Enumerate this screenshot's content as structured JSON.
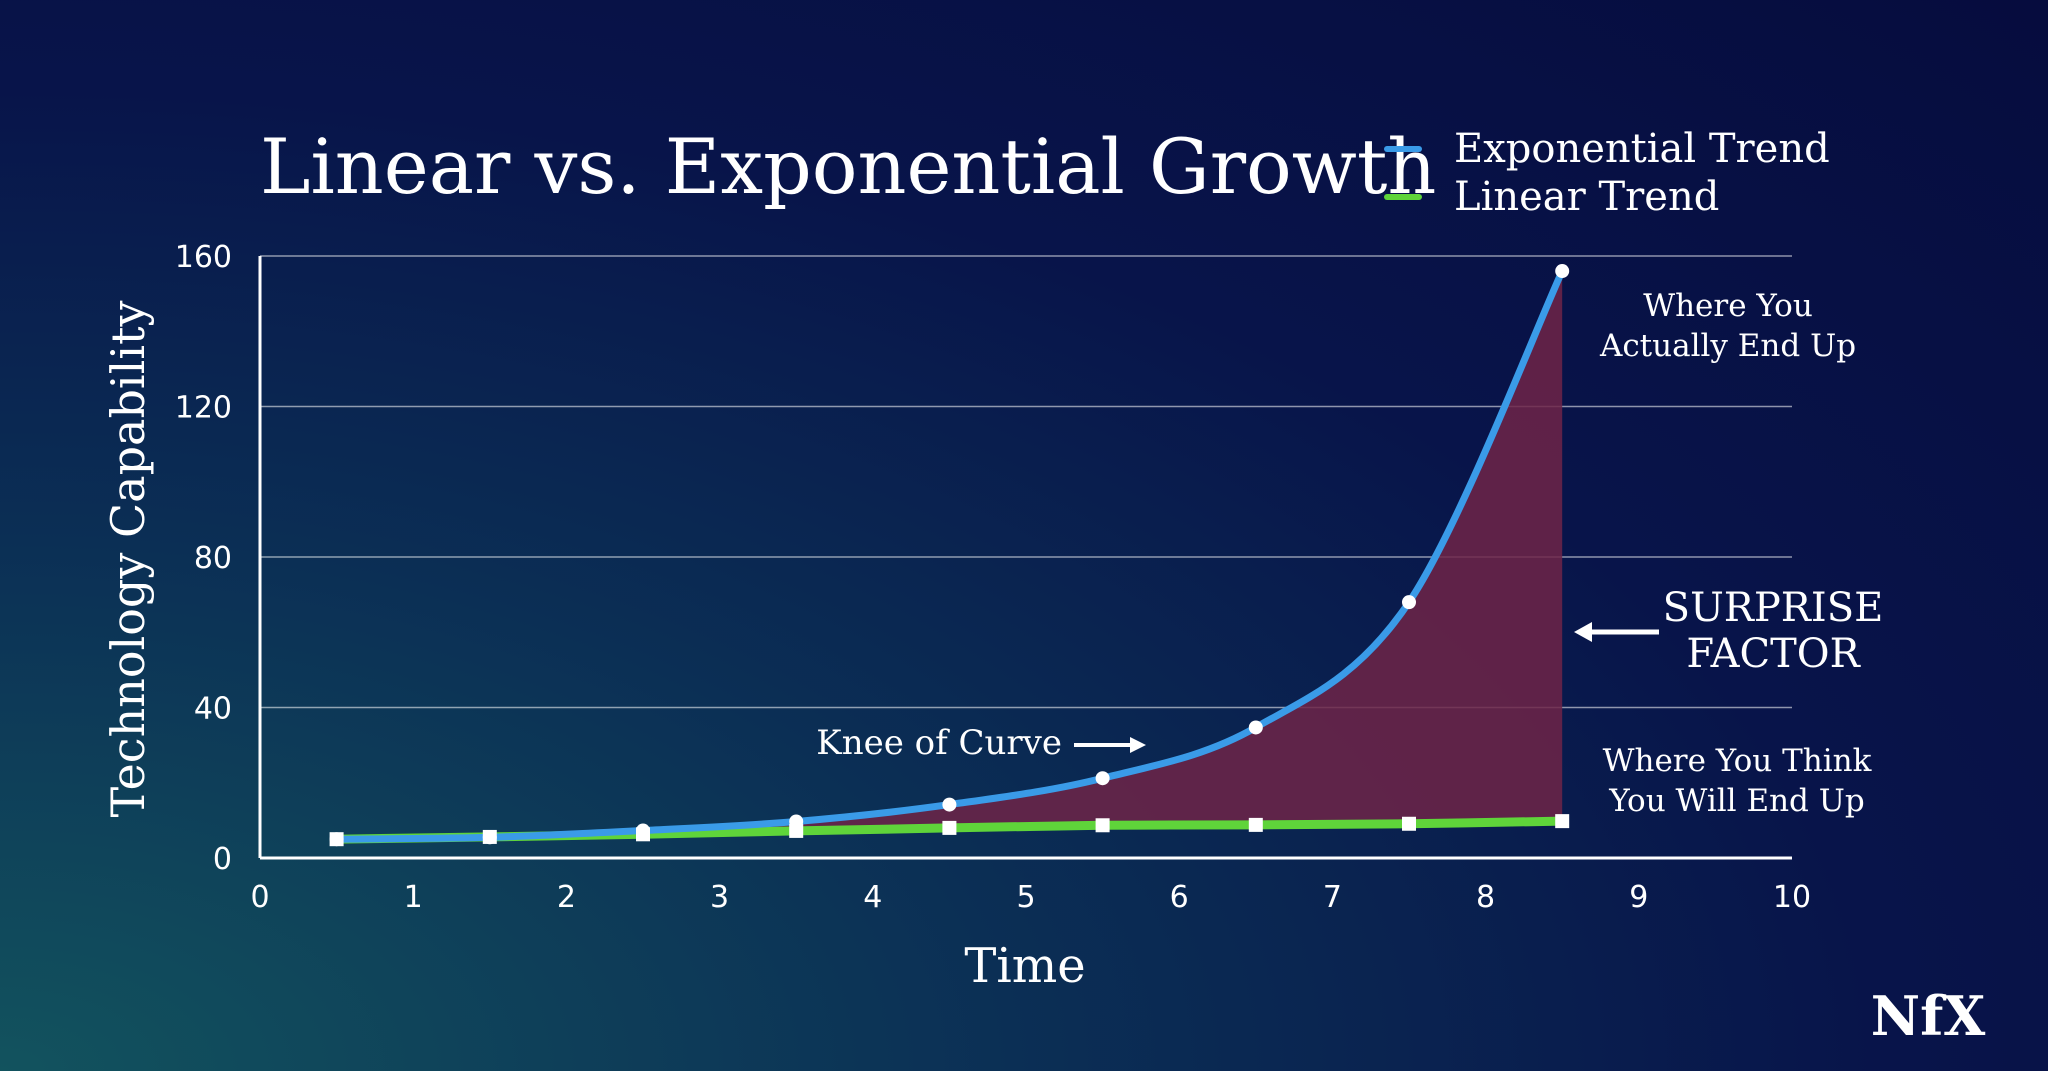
{
  "chart_data": {
    "type": "line",
    "title": "Linear vs. Exponential Growth",
    "xlabel": "Time",
    "ylabel": "Technology Capability",
    "xlim": [
      0,
      10
    ],
    "ylim": [
      0,
      160
    ],
    "x_ticks": [
      "0",
      "1",
      "2",
      "3",
      "4",
      "5",
      "6",
      "7",
      "8",
      "9",
      "10"
    ],
    "y_ticks": [
      "0",
      "40",
      "80",
      "120",
      "160"
    ],
    "grid": "horizontal",
    "legend_position": "top-right",
    "x": [
      0.5,
      1.5,
      2.5,
      3.5,
      4.5,
      5.5,
      6.5,
      7.5,
      8.5
    ],
    "series": [
      {
        "name": "Exponential Trend",
        "color": "#3a9be8",
        "marker": "circle",
        "values": [
          5,
          5.5,
          7.3,
          9.7,
          14.2,
          21.2,
          34.7,
          68,
          156
        ]
      },
      {
        "name": "Linear Trend",
        "color": "#5fd43a",
        "marker": "square",
        "values": [
          5,
          5.6,
          6.3,
          7.2,
          8,
          8.7,
          8.8,
          9.1,
          9.8
        ]
      }
    ],
    "fill_between_color": "#6e2448",
    "annotations": {
      "end_actual": [
        "Where You",
        "Actually End Up"
      ],
      "surprise": [
        "SURPRISE",
        "FACTOR"
      ],
      "end_think": [
        "Where You Think",
        "You Will End Up"
      ],
      "knee": "Knee of Curve"
    }
  },
  "brand": {
    "logo": "NfX"
  }
}
